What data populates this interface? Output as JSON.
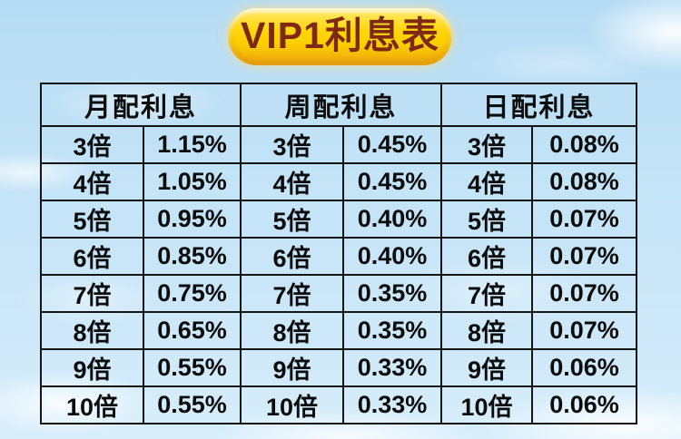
{
  "title": "VIP1利息表",
  "colors": {
    "badge_gold": "#ffd60a",
    "badge_text": "#7e2a12",
    "table_border": "#151515",
    "cell_text": "#0c0c0c",
    "sky_blue": "#c3e3f7",
    "cloud_white": "#ffffff"
  },
  "table": {
    "headers": [
      "月配利息",
      "周配利息",
      "日配利息"
    ],
    "rows": [
      [
        "3倍",
        "1.15%",
        "3倍",
        "0.45%",
        "3倍",
        "0.08%"
      ],
      [
        "4倍",
        "1.05%",
        "4倍",
        "0.45%",
        "4倍",
        "0.08%"
      ],
      [
        "5倍",
        "0.95%",
        "5倍",
        "0.40%",
        "5倍",
        "0.07%"
      ],
      [
        "6倍",
        "0.85%",
        "6倍",
        "0.40%",
        "6倍",
        "0.07%"
      ],
      [
        "7倍",
        "0.75%",
        "7倍",
        "0.35%",
        "7倍",
        "0.07%"
      ],
      [
        "8倍",
        "0.65%",
        "8倍",
        "0.35%",
        "8倍",
        "0.07%"
      ],
      [
        "9倍",
        "0.55%",
        "9倍",
        "0.33%",
        "9倍",
        "0.06%"
      ],
      [
        "10倍",
        "0.55%",
        "10倍",
        "0.33%",
        "10倍",
        "0.06%"
      ]
    ]
  },
  "chart_data": {
    "type": "table",
    "title": "VIP1利息表",
    "categories": [
      "3倍",
      "4倍",
      "5倍",
      "6倍",
      "7倍",
      "8倍",
      "9倍",
      "10倍"
    ],
    "series": [
      {
        "name": "月配利息",
        "values": [
          "1.15%",
          "1.05%",
          "0.95%",
          "0.85%",
          "0.75%",
          "0.65%",
          "0.55%",
          "0.55%"
        ]
      },
      {
        "name": "周配利息",
        "values": [
          "0.45%",
          "0.45%",
          "0.40%",
          "0.40%",
          "0.35%",
          "0.35%",
          "0.33%",
          "0.33%"
        ]
      },
      {
        "name": "日配利息",
        "values": [
          "0.08%",
          "0.08%",
          "0.07%",
          "0.07%",
          "0.07%",
          "0.07%",
          "0.06%",
          "0.06%"
        ]
      }
    ],
    "layout": {
      "header_row": true,
      "grid": true,
      "columns_per_group": 2
    }
  }
}
